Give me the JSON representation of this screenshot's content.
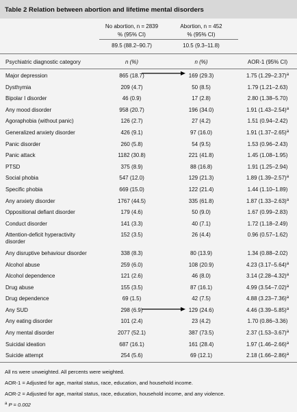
{
  "header": {
    "title": "Table 2 Relation between abortion and lifetime mental disorders"
  },
  "columns": {
    "no_abortion": {
      "label": "No abortion, n = 2839",
      "ci_label": "% (95% CI)",
      "overall": "89.5 (88.2–90.7)",
      "n_label": "n (%)"
    },
    "abortion": {
      "label": "Abortion, n = 452",
      "ci_label": "% (95% CI)",
      "overall": "10.5 (9.3–11.8)",
      "n_label": "n (%)"
    },
    "category_label": "Psychiatric diagnostic category",
    "aor1_label": "AOR-1 (95% CI)"
  },
  "rows": [
    {
      "category": "Major depression",
      "no_abortion": "865 (18.7)",
      "abortion": "169 (29.3)",
      "aor1": "1.75 (1.29–2.37)",
      "note": "a"
    },
    {
      "category": "Dysthymia",
      "no_abortion": "209 (4.7)",
      "abortion": "50 (8.5)",
      "aor1": "1.79 (1.21–2.63)"
    },
    {
      "category": "Bipolar I disorder",
      "no_abortion": "46 (0.9)",
      "abortion": "17 (2.8)",
      "aor1": "2.80 (1.38–5.70)"
    },
    {
      "category": "Any mood disorder",
      "no_abortion": "958 (20.7)",
      "abortion": "196 (34.0)",
      "aor1": "1.91 (1.43–2.54)",
      "note": "a"
    },
    {
      "category": "Agoraphobia (without panic)",
      "no_abortion": "126 (2.7)",
      "abortion": "27 (4.2)",
      "aor1": "1.51 (0.94–2.42)"
    },
    {
      "category": "Generalized anxiety disorder",
      "no_abortion": "426 (9.1)",
      "abortion": "97 (16.0)",
      "aor1": "1.91 (1.37–2.65)",
      "note": "a"
    },
    {
      "category": "Panic disorder",
      "no_abortion": "260 (5.8)",
      "abortion": "54 (9.5)",
      "aor1": "1.53 (0.96–2.43)"
    },
    {
      "category": "Panic attack",
      "no_abortion": "1182 (30.8)",
      "abortion": "221 (41.8)",
      "aor1": "1.45 (1.08–1.95)"
    },
    {
      "category": "PTSD",
      "no_abortion": "375 (8.9)",
      "abortion": "88 (16.8)",
      "aor1": "1.91 (1.25–2.94)"
    },
    {
      "category": "Social phobia",
      "no_abortion": "547 (12.0)",
      "abortion": "129 (21.3)",
      "aor1": "1.89 (1.39–2.57)",
      "note": "a"
    },
    {
      "category": "Specific phobia",
      "no_abortion": "669 (15.0)",
      "abortion": "122 (21.4)",
      "aor1": "1.44 (1.10–1.89)"
    },
    {
      "category": "Any anxiety disorder",
      "no_abortion": "1767 (44.5)",
      "abortion": "335 (61.8)",
      "aor1": "1.87 (1.33–2.63)",
      "note": "a"
    },
    {
      "category": "Oppositional defiant disorder",
      "no_abortion": "179 (4.6)",
      "abortion": "50 (9.0)",
      "aor1": "1.67 (0.99–2.83)"
    },
    {
      "category": "Conduct disorder",
      "no_abortion": "141 (3.3)",
      "abortion": "40 (7.1)",
      "aor1": "1.72 (1.18–2.49)"
    },
    {
      "category": "Attention-deficit hyperactivity disorder",
      "no_abortion": "152 (3.5)",
      "abortion": "26 (4.4)",
      "aor1": "0.96 (0.57–1.62)"
    },
    {
      "category": "Any disruptive behaviour disorder",
      "no_abortion": "338 (8.3)",
      "abortion": "80 (13.9)",
      "aor1": "1.34 (0.88–2.02)"
    },
    {
      "category": "Alcohol abuse",
      "no_abortion": "259 (6.0)",
      "abortion": "108 (20.9)",
      "aor1": "4.23 (3.17–5.64)",
      "note": "a"
    },
    {
      "category": "Alcohol dependence",
      "no_abortion": "121 (2.6)",
      "abortion": "46 (8.0)",
      "aor1": "3.14 (2.28–4.32)",
      "note": "a"
    },
    {
      "category": "Drug abuse",
      "no_abortion": "155 (3.5)",
      "abortion": "87 (16.1)",
      "aor1": "4.99 (3.54–7.02)",
      "note": "a"
    },
    {
      "category": "Drug dependence",
      "no_abortion": "69 (1.5)",
      "abortion": "42 (7.5)",
      "aor1": "4.88 (3.23–7.36)",
      "note": "a"
    },
    {
      "category": "Any SUD",
      "no_abortion": "298 (6.9)",
      "abortion": "129 (24.6)",
      "aor1": "4.46 (3.39–5.85)",
      "note": "a"
    },
    {
      "category": "Any eating disorder",
      "no_abortion": "101 (2.4)",
      "abortion": "23 (4.2)",
      "aor1": "1.70 (0.86–3.36)"
    },
    {
      "category": "Any mental disorder",
      "no_abortion": "2077 (52.1)",
      "abortion": "387 (73.5)",
      "aor1": "2.37 (1.53–3.67)",
      "note": "a"
    },
    {
      "category": "Suicidal ideation",
      "no_abortion": "687 (16.1)",
      "abortion": "161 (28.4)",
      "aor1": "1.97 (1.46–2.66)",
      "note": "a"
    },
    {
      "category": "Suicide attempt",
      "no_abortion": "254 (5.6)",
      "abortion": "69 (12.1)",
      "aor1": "2.18 (1.66–2.86)",
      "note": "a"
    }
  ],
  "footnotes": {
    "unweighted": "All ns were unweighted. All percents were weighted.",
    "aor1": "AOR-1 = Adjusted for age, marital status, race, education, and household income.",
    "aor2": "AOR-2 = Adjusted for age, marital status, race, education, household income, and any violence.",
    "p": {
      "sup": "a",
      "text": "P = 0.002"
    }
  }
}
